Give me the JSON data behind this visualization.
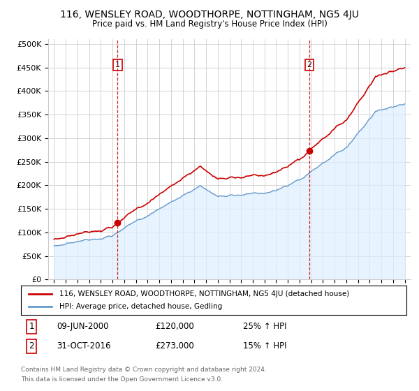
{
  "title": "116, WENSLEY ROAD, WOODTHORPE, NOTTINGHAM, NG5 4JU",
  "subtitle": "Price paid vs. HM Land Registry's House Price Index (HPI)",
  "ylabel_ticks": [
    0,
    50000,
    100000,
    150000,
    200000,
    250000,
    300000,
    350000,
    400000,
    450000,
    500000
  ],
  "ylabel_labels": [
    "£0",
    "£50K",
    "£100K",
    "£150K",
    "£200K",
    "£250K",
    "£300K",
    "£350K",
    "£400K",
    "£450K",
    "£500K"
  ],
  "ylim": [
    0,
    510000
  ],
  "sale1_year": 2000.44,
  "sale1_price": 120000,
  "sale1_label": "1",
  "sale1_date": "09-JUN-2000",
  "sale1_pct": "25%",
  "sale2_year": 2016.83,
  "sale2_price": 273000,
  "sale2_label": "2",
  "sale2_date": "31-OCT-2016",
  "sale2_pct": "15%",
  "legend_line1": "116, WENSLEY ROAD, WOODTHORPE, NOTTINGHAM, NG5 4JU (detached house)",
  "legend_line2": "HPI: Average price, detached house, Gedling",
  "footer1": "Contains HM Land Registry data © Crown copyright and database right 2024.",
  "footer2": "This data is licensed under the Open Government Licence v3.0.",
  "red_color": "#cc0000",
  "blue_color": "#6699cc",
  "blue_fill": "#ddeeff",
  "bg_color": "#ffffff",
  "grid_color": "#cccccc"
}
